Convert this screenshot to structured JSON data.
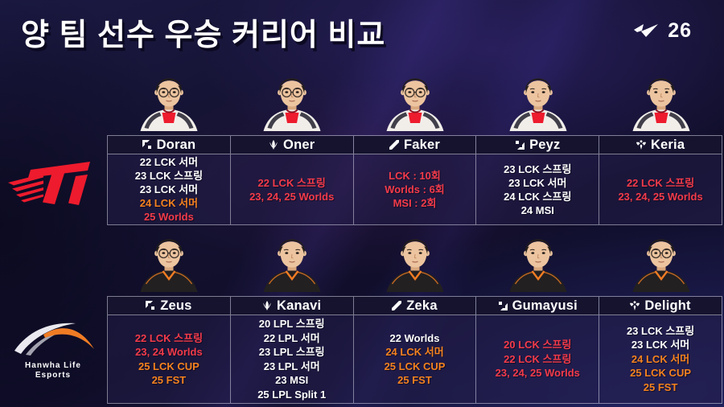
{
  "title": "양 팀 선수 우승 커리어 비교",
  "badge": {
    "icon": "lck-wing-icon",
    "year": "26"
  },
  "colors": {
    "career_red": "#f43b4a",
    "career_orange": "#f5821f",
    "career_white": "#ffffff",
    "table_line": "rgba(215,215,232,0.55)",
    "header_bg": "#15132e",
    "body_bg": "rgba(36,30,74,0.50)",
    "t1_red": "#ed1b2d",
    "hle_orange": "#ef7c24",
    "logo_silver": "#e9e9ef",
    "logo_gray": "#a2a3af"
  },
  "hanwha_logo": {
    "line1": "Hanwha Life",
    "line2": "Esports"
  },
  "teams": [
    {
      "name": "T1",
      "logo": "t1-logo",
      "players": [
        {
          "name": "Doran",
          "role": "top",
          "glasses": true,
          "careers": [
            {
              "text": "22 LCK 서머",
              "color": "white"
            },
            {
              "text": "23 LCK 스프링",
              "color": "white"
            },
            {
              "text": "23 LCK 서머",
              "color": "white"
            },
            {
              "text": "24 LCK 서머",
              "color": "orange"
            },
            {
              "text": "25 Worlds",
              "color": "red"
            }
          ]
        },
        {
          "name": "Oner",
          "role": "jungle",
          "glasses": true,
          "careers": [
            {
              "text": "22 LCK 스프링",
              "color": "red"
            },
            {
              "text": "23, 24, 25 Worlds",
              "color": "red"
            }
          ]
        },
        {
          "name": "Faker",
          "role": "mid",
          "glasses": true,
          "careers": [
            {
              "text": "LCK : 10회",
              "color": "red"
            },
            {
              "text": "Worlds : 6회",
              "color": "red"
            },
            {
              "text": "MSI : 2회",
              "color": "red"
            }
          ]
        },
        {
          "name": "Peyz",
          "role": "bot",
          "glasses": false,
          "careers": [
            {
              "text": "23 LCK 스프링",
              "color": "white"
            },
            {
              "text": "23 LCK 서머",
              "color": "white"
            },
            {
              "text": "24 LCK 스프링",
              "color": "white"
            },
            {
              "text": "24 MSI",
              "color": "white"
            }
          ]
        },
        {
          "name": "Keria",
          "role": "support",
          "glasses": false,
          "careers": [
            {
              "text": "22 LCK 스프링",
              "color": "red"
            },
            {
              "text": "23, 24, 25 Worlds",
              "color": "red"
            }
          ]
        }
      ]
    },
    {
      "name": "Hanwha Life Esports",
      "logo": "hanwha-life-esports-logo",
      "players": [
        {
          "name": "Zeus",
          "role": "top",
          "glasses": true,
          "careers": [
            {
              "text": "22 LCK 스프링",
              "color": "red"
            },
            {
              "text": "23, 24 Worlds",
              "color": "red"
            },
            {
              "text": "25 LCK CUP",
              "color": "orange"
            },
            {
              "text": "25 FST",
              "color": "orange"
            }
          ]
        },
        {
          "name": "Kanavi",
          "role": "jungle",
          "glasses": false,
          "careers": [
            {
              "text": "20 LPL 스프링",
              "color": "white"
            },
            {
              "text": "22 LPL 서머",
              "color": "white"
            },
            {
              "text": "23 LPL 스프링",
              "color": "white"
            },
            {
              "text": "23 LPL 서머",
              "color": "white"
            },
            {
              "text": "23 MSI",
              "color": "white"
            },
            {
              "text": "25 LPL Split 1",
              "color": "white"
            }
          ]
        },
        {
          "name": "Zeka",
          "role": "mid",
          "glasses": false,
          "careers": [
            {
              "text": "22 Worlds",
              "color": "white"
            },
            {
              "text": "24 LCK 서머",
              "color": "orange"
            },
            {
              "text": "25 LCK CUP",
              "color": "orange"
            },
            {
              "text": "25 FST",
              "color": "orange"
            }
          ]
        },
        {
          "name": "Gumayusi",
          "role": "bot",
          "glasses": false,
          "careers": [
            {
              "text": "20 LCK 스프링",
              "color": "red"
            },
            {
              "text": "22 LCK 스프링",
              "color": "red"
            },
            {
              "text": "23, 24, 25 Worlds",
              "color": "red"
            }
          ]
        },
        {
          "name": "Delight",
          "role": "support",
          "glasses": true,
          "careers": [
            {
              "text": "23 LCK 스프링",
              "color": "white"
            },
            {
              "text": "23 LCK 서머",
              "color": "white"
            },
            {
              "text": "24 LCK 서머",
              "color": "orange"
            },
            {
              "text": "25 LCK CUP",
              "color": "orange"
            },
            {
              "text": "25 FST",
              "color": "orange"
            }
          ]
        }
      ]
    }
  ]
}
